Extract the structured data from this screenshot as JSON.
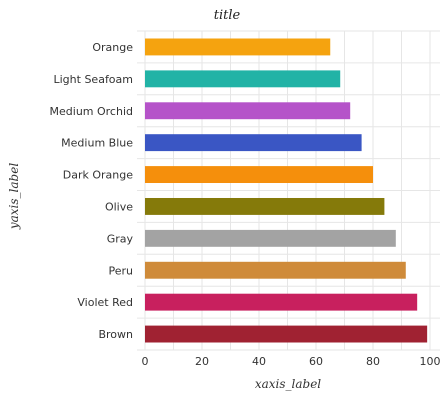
{
  "chart_data": {
    "type": "bar",
    "orientation": "horizontal",
    "title": "title",
    "xlabel": "xaxis_label",
    "ylabel": "yaxis_label",
    "xlim": [
      0,
      100
    ],
    "x_ticks": [
      "0",
      "20",
      "40",
      "60",
      "80",
      "100"
    ],
    "grid": true,
    "categories": [
      "Orange",
      "Light Seafoam",
      "Medium Orchid",
      "Medium Blue",
      "Dark Orange",
      "Olive",
      "Gray",
      "Peru",
      "Violet Red",
      "Brown"
    ],
    "values": [
      65,
      68.5,
      72,
      76,
      80,
      84,
      88,
      91.5,
      95.5,
      99
    ],
    "colors": [
      "#f5a30f",
      "#22b3a6",
      "#b553c9",
      "#3a56c4",
      "#f58f0c",
      "#857a0a",
      "#a3a3a3",
      "#cf8b3a",
      "#c8205e",
      "#a02232"
    ]
  }
}
